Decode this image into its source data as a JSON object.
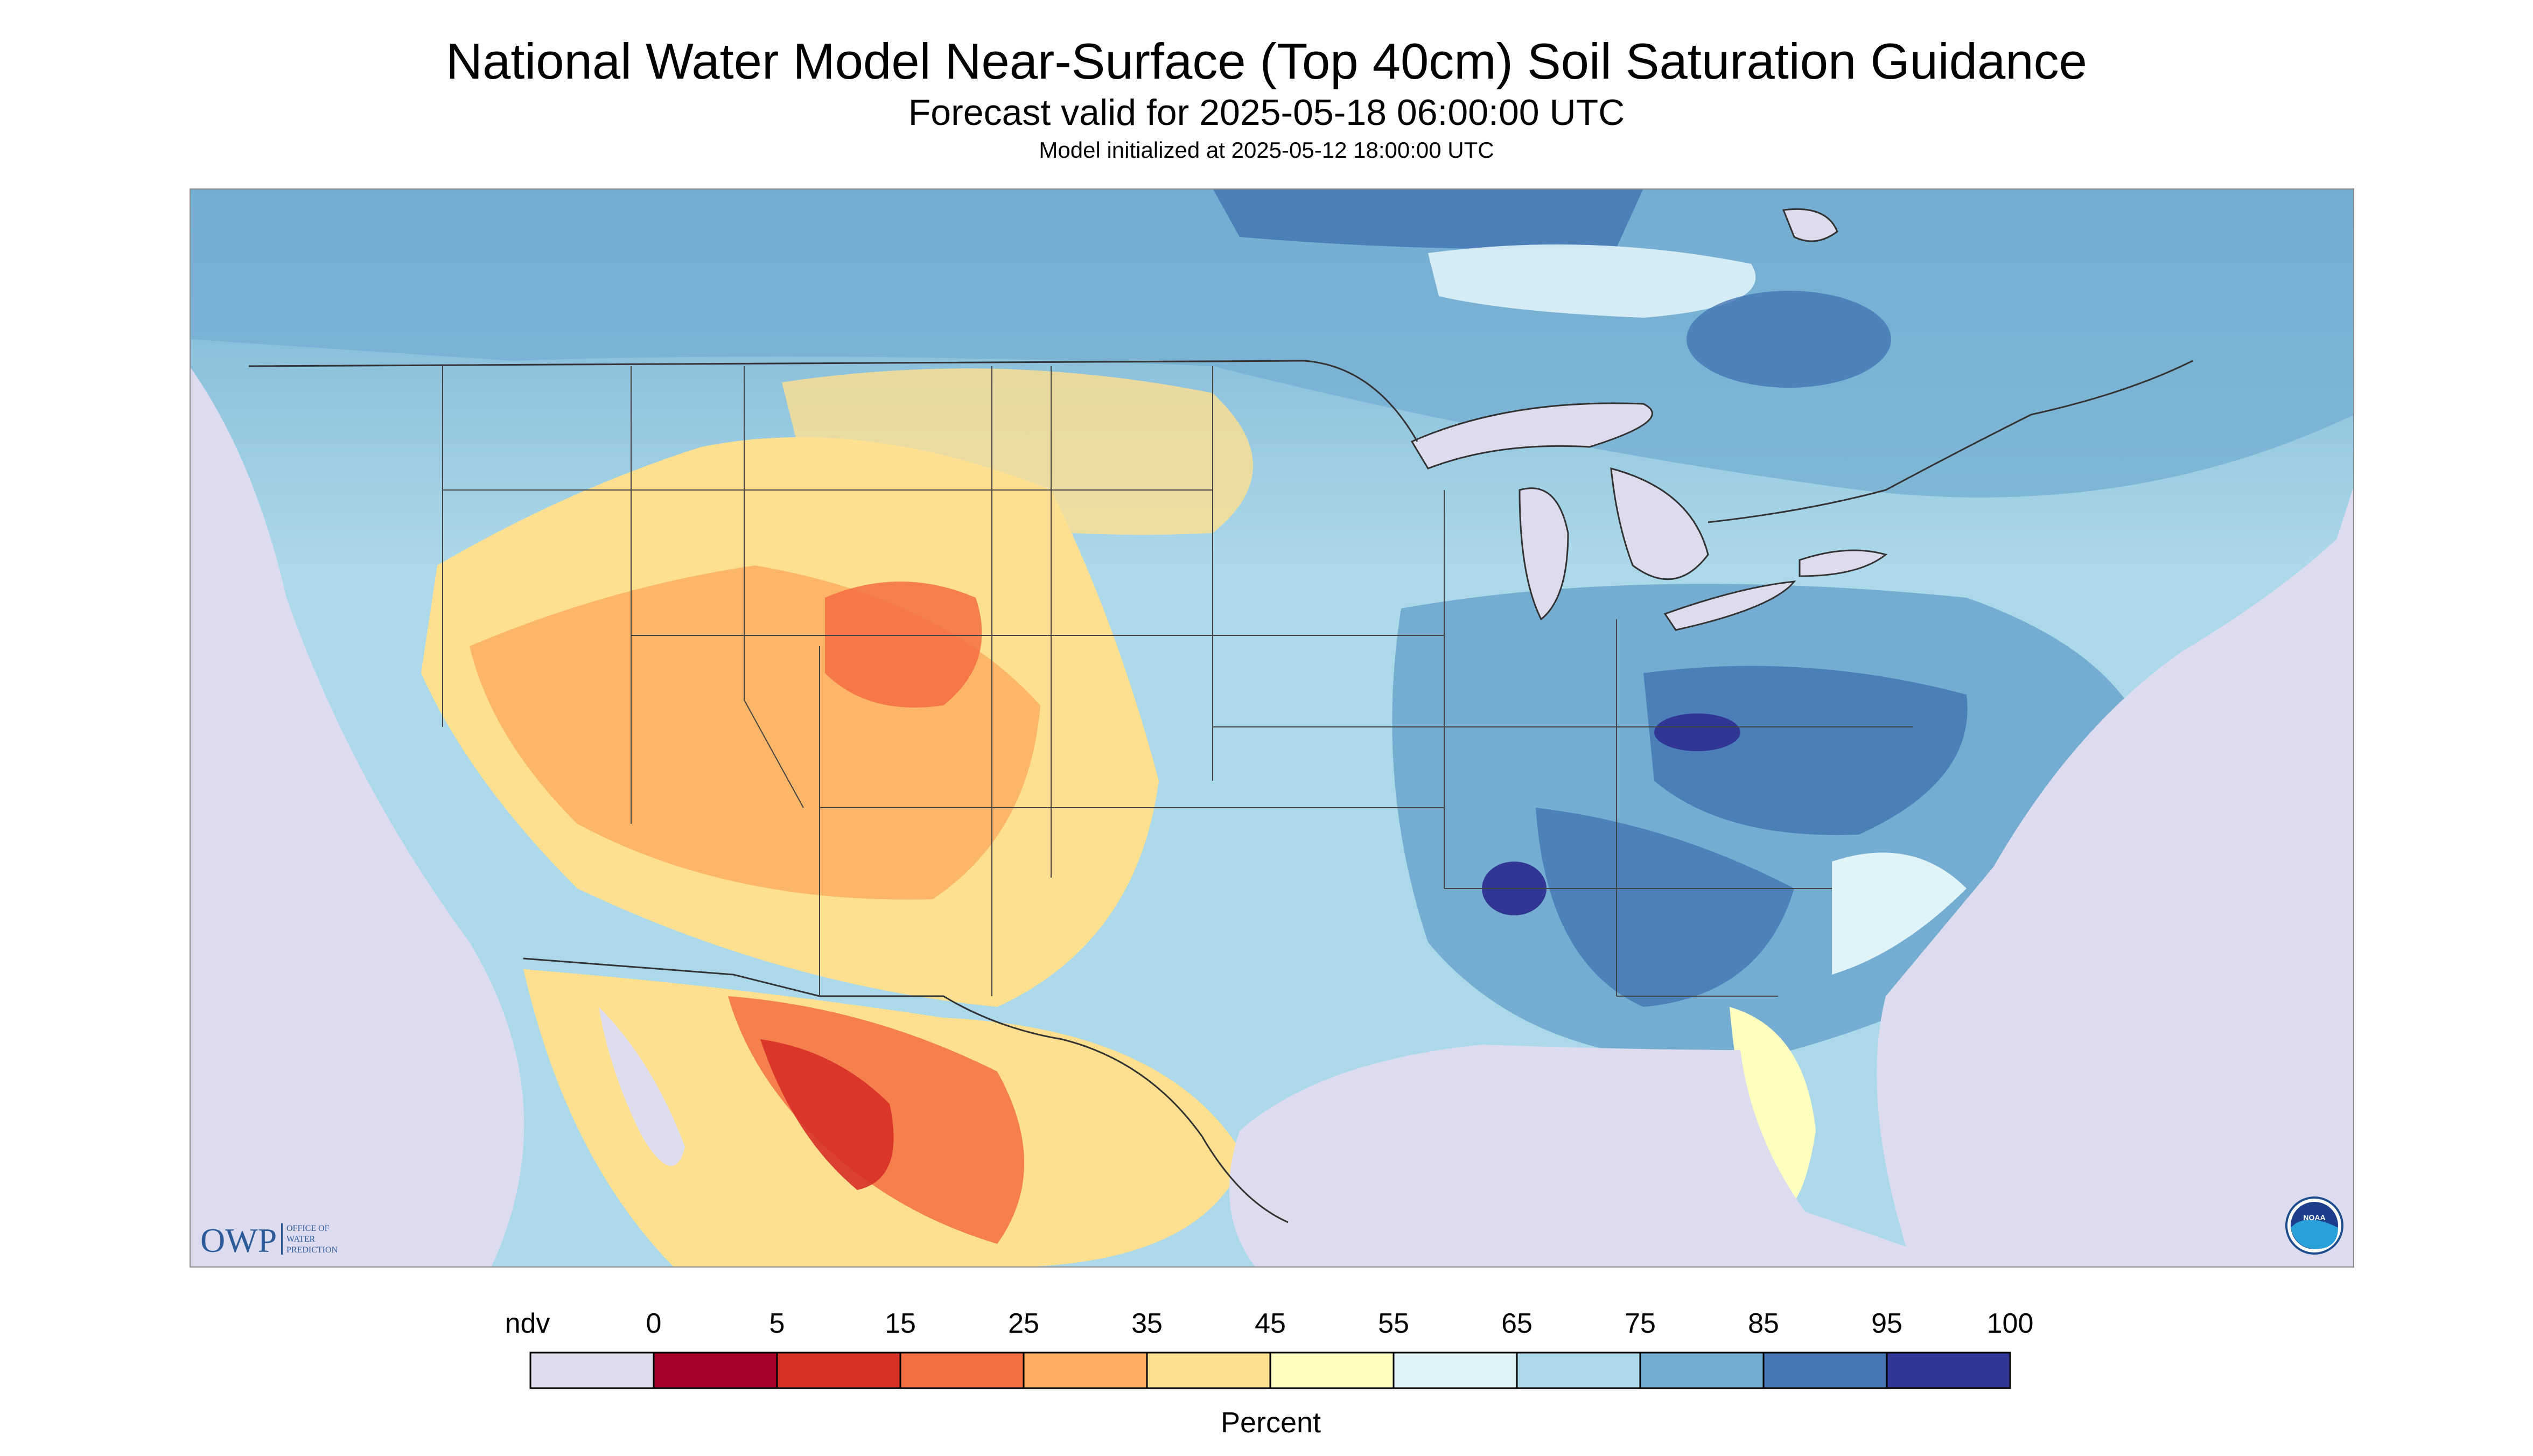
{
  "title": "National Water Model Near-Surface (Top 40cm) Soil Saturation Guidance",
  "subtitle": "Forecast valid for 2025-05-18 06:00:00 UTC",
  "init_line": "Model initialized at 2025-05-12 18:00:00 UTC",
  "logo_owp": {
    "abbr": "OWP",
    "lines": [
      "OFFICE OF",
      "WATER",
      "PREDICTION"
    ]
  },
  "logo_noaa": {
    "text": "NOAA"
  },
  "colorbar": {
    "unit_label": "Percent",
    "ndv_label": "ndv",
    "tick_labels": [
      "0",
      "5",
      "15",
      "25",
      "35",
      "45",
      "55",
      "65",
      "75",
      "85",
      "95",
      "100"
    ],
    "bins": [
      {
        "label": "ndv",
        "color": "#dcdcee"
      },
      {
        "range": "0-5",
        "color": "#a50026"
      },
      {
        "range": "5-15",
        "color": "#d73027"
      },
      {
        "range": "15-25",
        "color": "#f46d43"
      },
      {
        "range": "25-35",
        "color": "#fdae61"
      },
      {
        "range": "35-45",
        "color": "#fee090"
      },
      {
        "range": "45-55",
        "color": "#ffffbf"
      },
      {
        "range": "55-65",
        "color": "#e0f3f8"
      },
      {
        "range": "65-75",
        "color": "#abd9e9"
      },
      {
        "range": "75-85",
        "color": "#74add1"
      },
      {
        "range": "85-95",
        "color": "#4575b4"
      },
      {
        "range": "95-100",
        "color": "#313695"
      }
    ]
  },
  "colors": {
    "nodata": "#dcdcee",
    "water": "#dcdcee",
    "boundary": "#333333"
  }
}
